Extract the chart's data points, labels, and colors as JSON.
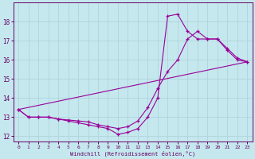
{
  "xlabel": "Windchill (Refroidissement éolien,°C)",
  "background_color": "#c5e8ee",
  "grid_color": "#aed4dc",
  "line_color": "#990099",
  "xlim": [
    -0.5,
    23.5
  ],
  "ylim": [
    11.7,
    19.0
  ],
  "yticks": [
    12,
    13,
    14,
    15,
    16,
    17,
    18
  ],
  "xticks": [
    0,
    1,
    2,
    3,
    4,
    5,
    6,
    7,
    8,
    9,
    10,
    11,
    12,
    13,
    14,
    15,
    16,
    17,
    18,
    19,
    20,
    21,
    22,
    23
  ],
  "line1_x": [
    0,
    1,
    2,
    3,
    4,
    5,
    6,
    7,
    8,
    9,
    10,
    11,
    12,
    13,
    14,
    15,
    16,
    17,
    18,
    19,
    20,
    21,
    22,
    23
  ],
  "line1_y": [
    13.4,
    13.0,
    13.0,
    13.0,
    12.9,
    12.8,
    12.7,
    12.6,
    12.5,
    12.4,
    12.1,
    12.2,
    12.4,
    13.0,
    14.0,
    18.3,
    18.4,
    17.5,
    17.1,
    17.1,
    17.1,
    16.6,
    16.1,
    15.9
  ],
  "line2_x": [
    0,
    1,
    2,
    3,
    4,
    5,
    6,
    7,
    8,
    9,
    10,
    11,
    12,
    13,
    14,
    15,
    16,
    17,
    18,
    19,
    20,
    21,
    22,
    23
  ],
  "line2_y": [
    13.4,
    13.0,
    13.0,
    13.0,
    12.9,
    12.85,
    12.8,
    12.75,
    12.6,
    12.5,
    12.4,
    12.5,
    12.8,
    13.5,
    14.5,
    15.4,
    16.0,
    17.1,
    17.5,
    17.1,
    17.1,
    16.5,
    16.0,
    15.9
  ],
  "line3_x": [
    0,
    23
  ],
  "line3_y": [
    13.4,
    15.9
  ]
}
